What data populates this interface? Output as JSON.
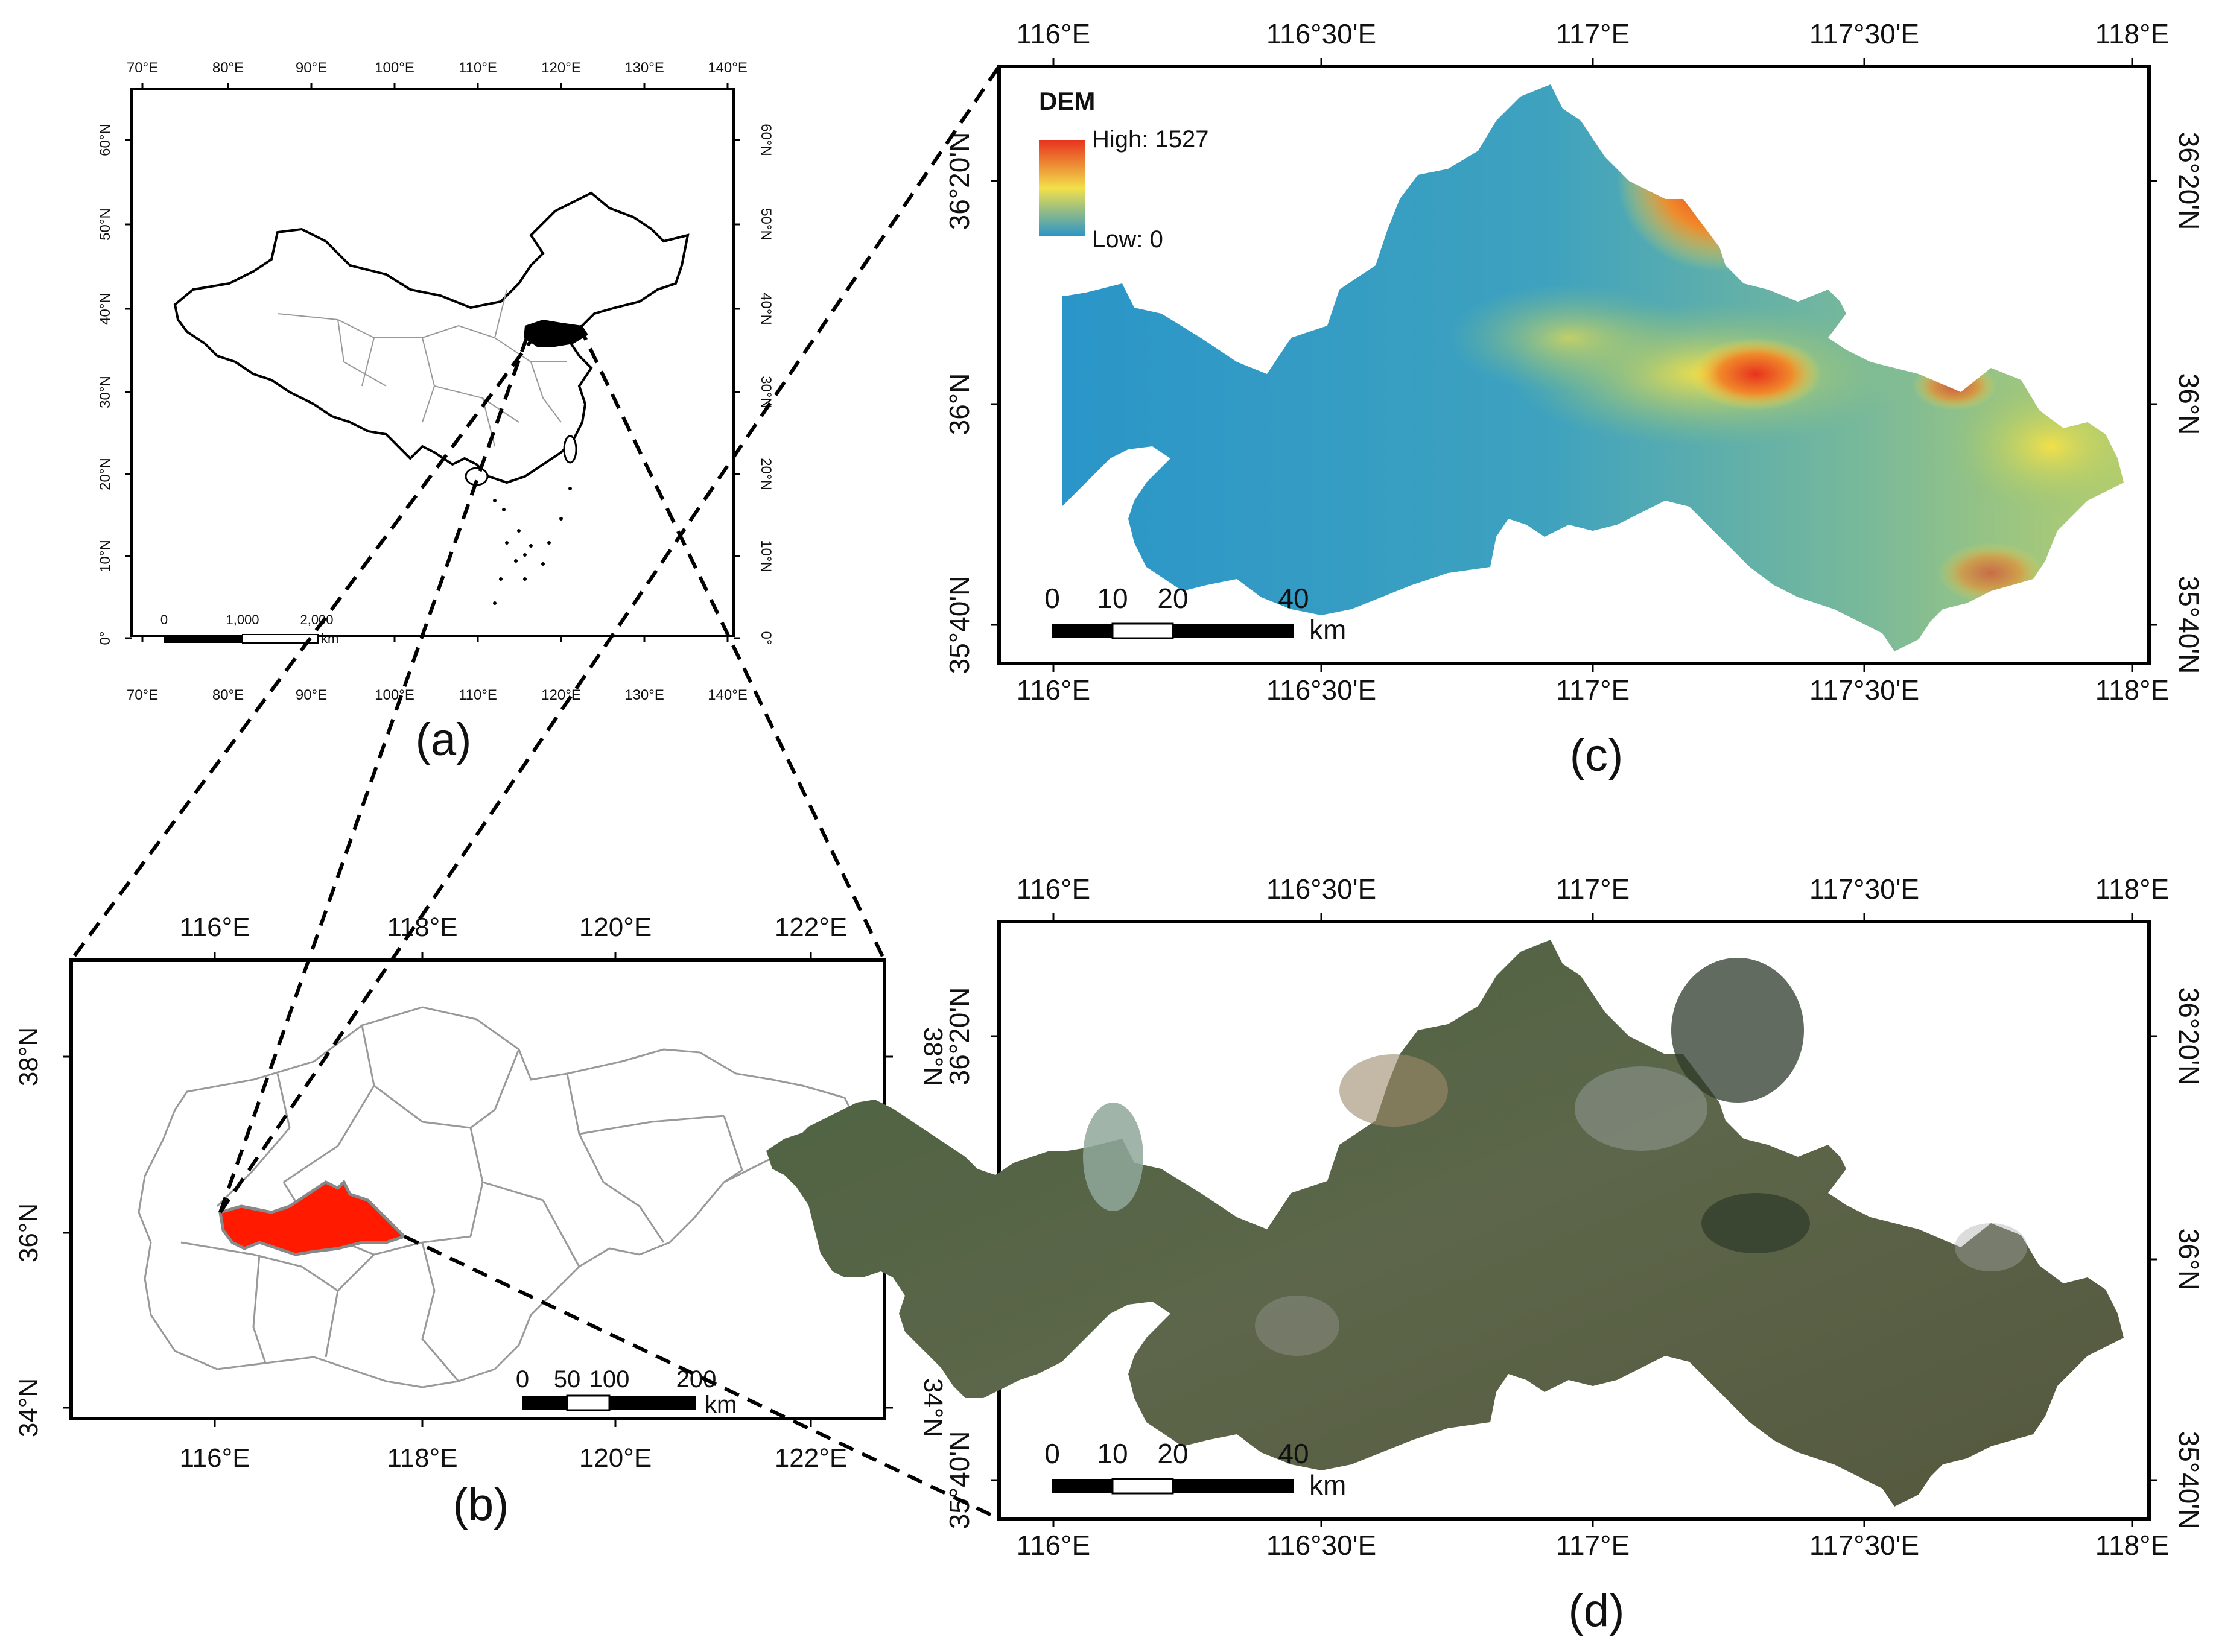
{
  "panels": {
    "a": {
      "caption": "(a)",
      "lon_labels": [
        "70°E",
        "80°E",
        "90°E",
        "100°E",
        "110°E",
        "120°E",
        "130°E",
        "140°E"
      ],
      "lat_labels": [
        "0°",
        "10°N",
        "20°N",
        "30°N",
        "40°N",
        "50°N",
        "60°N"
      ],
      "scale": {
        "labels": [
          "0",
          "1,000",
          "2,000"
        ],
        "unit": "km"
      }
    },
    "b": {
      "caption": "(b)",
      "lon_labels": [
        "116°E",
        "118°E",
        "120°E",
        "122°E"
      ],
      "lat_labels": [
        "34°N",
        "36°N",
        "38°N"
      ],
      "scale": {
        "labels": [
          "0",
          "50",
          "100",
          "200"
        ],
        "unit": "km"
      }
    },
    "c": {
      "caption": "(c)",
      "lon_labels": [
        "116°E",
        "116°30'E",
        "117°E",
        "117°30'E",
        "118°E"
      ],
      "lat_labels": [
        "35°40'N",
        "36°N",
        "36°20'N"
      ],
      "legend": {
        "title": "DEM",
        "high": "High: 1527",
        "low": "Low: 0"
      },
      "scale": {
        "labels": [
          "0",
          "10",
          "20",
          "40"
        ],
        "unit": "km"
      }
    },
    "d": {
      "caption": "(d)",
      "lon_labels": [
        "116°E",
        "116°30'E",
        "117°E",
        "117°30'E",
        "118°E"
      ],
      "lat_labels": [
        "35°40'N",
        "36°N",
        "36°20'N"
      ],
      "scale": {
        "labels": [
          "0",
          "10",
          "20",
          "40"
        ],
        "unit": "km"
      }
    }
  },
  "colors": {
    "study_area": "#ff1a00",
    "dem_low": "#2a95c8",
    "dem_mid": "#f2e04a",
    "dem_high": "#e8321e",
    "imagery": "#4f5e3c"
  }
}
